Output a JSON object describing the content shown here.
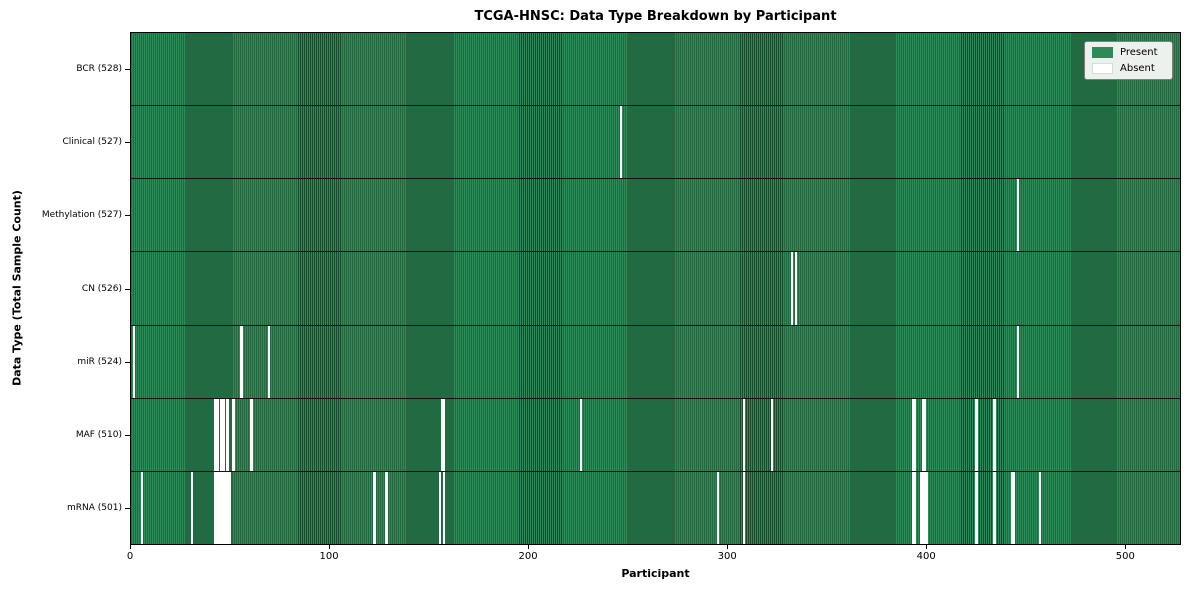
{
  "chart_data": {
    "type": "heatmap",
    "title": "TCGA-HNSC: Data Type Breakdown by Participant",
    "xlabel": "Participant",
    "ylabel": "Data Type (Total Sample Count)",
    "n_participants": 528,
    "xticks": [
      0,
      100,
      200,
      300,
      400,
      500
    ],
    "xlim": [
      0,
      528
    ],
    "grid": false,
    "legend_position": "upper right",
    "colors": {
      "present": "#2e8b57",
      "absent": "#ffffff",
      "cell_edge": "rgba(0,10,5,0.5)",
      "row_separator": "#111111",
      "legend_background": "#edf1ed"
    },
    "legend": [
      {
        "label": "Present",
        "color": "#2e8b57"
      },
      {
        "label": "Absent",
        "color": "#ffffff"
      }
    ],
    "rows": [
      {
        "label": "BCR",
        "count": 528,
        "tick_label": "BCR (528)",
        "absent_participants": []
      },
      {
        "label": "Clinical",
        "count": 527,
        "tick_label": "Clinical (527)",
        "absent_participants": [
          246
        ]
      },
      {
        "label": "Methylation",
        "count": 527,
        "tick_label": "Methylation (527)",
        "absent_participants": [
          446
        ]
      },
      {
        "label": "CN",
        "count": 526,
        "tick_label": "CN (526)",
        "absent_participants": [
          332,
          334
        ]
      },
      {
        "label": "miR",
        "count": 524,
        "tick_label": "miR (524)",
        "absent_participants": [
          1,
          55,
          69,
          446
        ]
      },
      {
        "label": "MAF",
        "count": 510,
        "tick_label": "MAF (510)",
        "absent_participants": [
          42,
          43,
          45,
          46,
          48,
          51,
          60,
          156,
          157,
          226,
          308,
          322,
          393,
          394,
          398,
          399,
          425,
          434
        ]
      },
      {
        "label": "mRNA",
        "count": 501,
        "tick_label": "mRNA (501)",
        "absent_participants": [
          5,
          30,
          42,
          43,
          44,
          45,
          46,
          47,
          48,
          49,
          122,
          128,
          155,
          157,
          295,
          308,
          393,
          394,
          397,
          398,
          399,
          400,
          425,
          434,
          443,
          444,
          457
        ]
      }
    ]
  }
}
